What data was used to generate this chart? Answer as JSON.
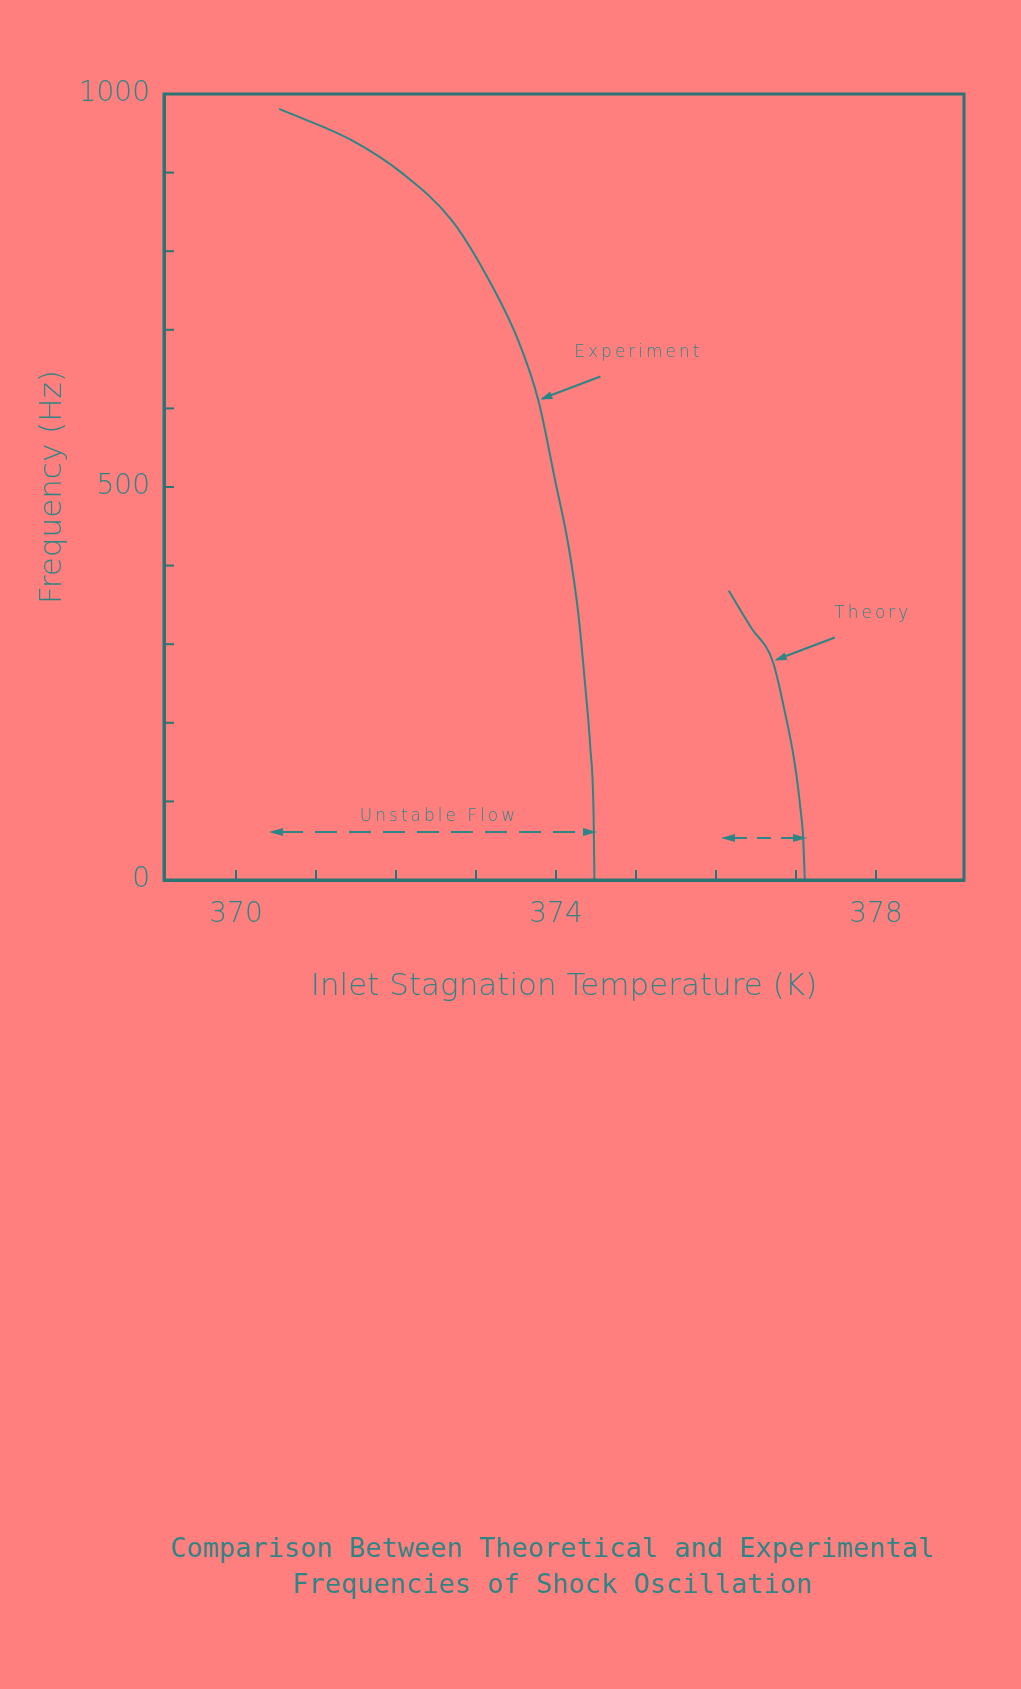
{
  "chart_data": {
    "type": "line",
    "title": "Comparison Between Theoretical and Experimental Frequencies of Shock Oscillation",
    "xlabel": "Inlet Stagnation Temperature (K)",
    "ylabel": "Frequency (Hz)",
    "xlim": [
      369.1,
      379.1
    ],
    "ylim": [
      0,
      1000
    ],
    "xticks": [
      370,
      {
        "value": 371,
        "label": null
      },
      {
        "value": 372,
        "label": null
      },
      {
        "value": 373,
        "label": null
      },
      374,
      {
        "value": 375,
        "label": null
      },
      {
        "value": 376,
        "label": null
      },
      {
        "value": 377,
        "label": null
      },
      378
    ],
    "yticks": [
      0,
      {
        "value": 100,
        "label": null
      },
      {
        "value": 200,
        "label": null
      },
      {
        "value": 300,
        "label": null
      },
      {
        "value": 400,
        "label": null
      },
      500,
      {
        "value": 600,
        "label": null
      },
      {
        "value": 700,
        "label": null
      },
      {
        "value": 800,
        "label": null
      },
      {
        "value": 900,
        "label": null
      },
      1000
    ],
    "series": [
      {
        "color": "#2e8585",
        "x": [
          370.54,
          371.45,
          372.08,
          372.7,
          373.12,
          373.53,
          373.78,
          373.99,
          374.16,
          374.28,
          374.36,
          374.43,
          374.47,
          374.48
        ],
        "values": [
          981,
          941,
          899,
          839,
          771,
          686,
          610,
          508,
          423,
          338,
          253,
          167,
          83,
          0
        ]
      },
      {
        "color": "#2e8585",
        "x": [
          376.16,
          376.44,
          376.71,
          376.86,
          376.98,
          377.06,
          377.09,
          377.11
        ],
        "values": [
          368,
          321,
          278,
          214,
          151,
          87,
          53,
          0
        ]
      }
    ],
    "annotations": [
      "Unstable Flow",
      {
        "text": "Experiment",
        "x": 373.78,
        "y": 610
      },
      {
        "text": "Theory",
        "x": 376.71,
        "y": 278
      }
    ],
    "marker": "none",
    "line_style": "solid",
    "grid": false
  }
}
